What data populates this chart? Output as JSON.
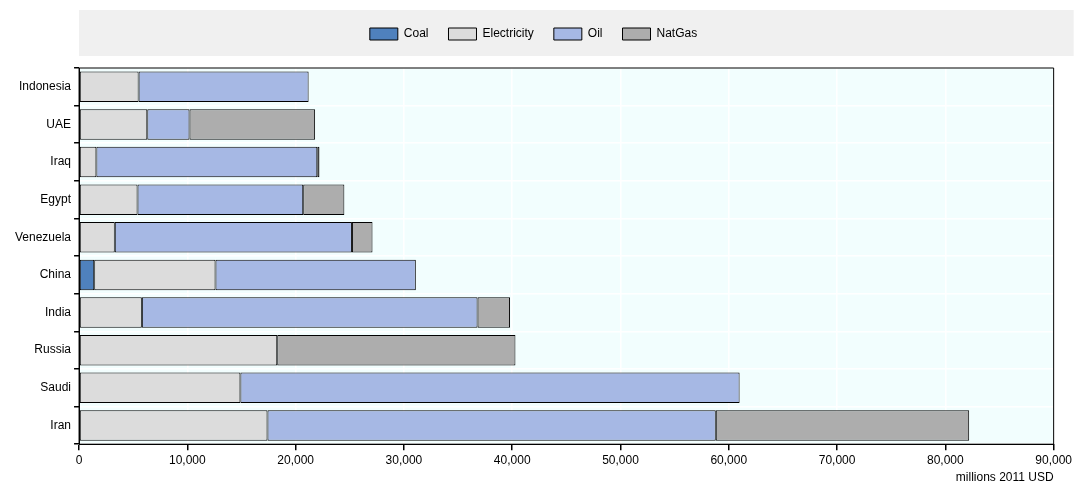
{
  "chart_data": {
    "type": "bar",
    "orientation": "horizontal",
    "stacked": true,
    "categories": [
      "Indonesia",
      "UAE",
      "Iraq",
      "Egypt",
      "Venezuela",
      "China",
      "India",
      "Russia",
      "Saudi",
      "Iran"
    ],
    "series": [
      {
        "name": "Coal",
        "color": "#4f81bd",
        "values": [
          null,
          null,
          null,
          null,
          null,
          1400,
          null,
          null,
          null,
          null
        ]
      },
      {
        "name": "Electricity",
        "color": "#dcdcdc",
        "values": [
          5500,
          6300,
          1600,
          5400,
          3300,
          11200,
          5800,
          18300,
          14900,
          17400
        ]
      },
      {
        "name": "Oil",
        "color": "#a6b8e4",
        "values": [
          15700,
          3900,
          20400,
          15300,
          21900,
          18500,
          31000,
          null,
          46100,
          41400
        ]
      },
      {
        "name": "NatGas",
        "color": "#adadad",
        "values": [
          null,
          11600,
          200,
          3800,
          1900,
          null,
          3000,
          22000,
          null,
          23400
        ]
      }
    ],
    "xlim": [
      0,
      90000
    ],
    "xticks": [
      {
        "value": 0,
        "label": "0"
      },
      {
        "value": 10000,
        "label": "10,000"
      },
      {
        "value": 20000,
        "label": "20,000"
      },
      {
        "value": 30000,
        "label": "30,000"
      },
      {
        "value": 40000,
        "label": "40,000"
      },
      {
        "value": 50000,
        "label": "50,000"
      },
      {
        "value": 60000,
        "label": "60,000"
      },
      {
        "value": 70000,
        "label": "70,000"
      },
      {
        "value": 80000,
        "label": "80,000"
      },
      {
        "value": 90000,
        "label": "90,000"
      }
    ],
    "xlabel": "millions 2011 USD",
    "grid": true,
    "legend": "top"
  }
}
